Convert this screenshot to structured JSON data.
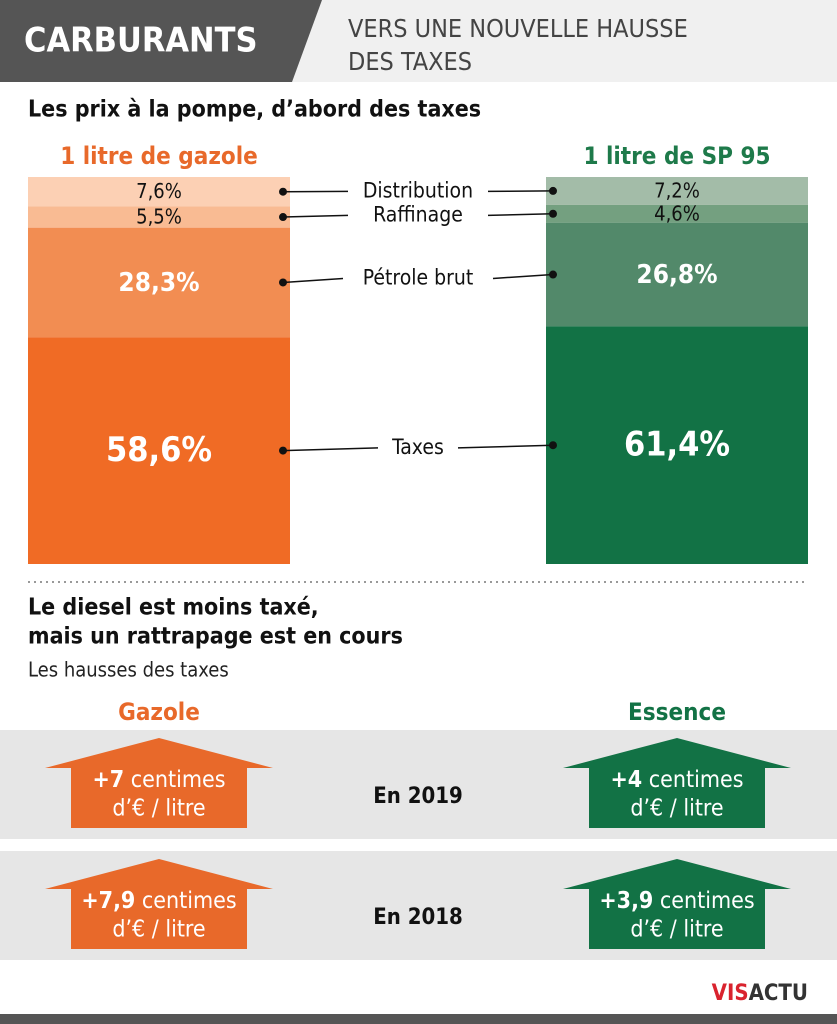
{
  "header": {
    "tag": "CARBURANTS",
    "title_lines": [
      "VERS UNE NOUVELLE HAUSSE",
      "DES TAXES"
    ]
  },
  "chart_data": {
    "type": "stacked_bar",
    "title": "Les prix à la pompe, d’abord des taxes",
    "categories": [
      "1 litre de gazole",
      "1 litre de SP 95"
    ],
    "category_colors": [
      "#e8692a",
      "#1e7a4a"
    ],
    "ylim": [
      0,
      100
    ],
    "series": [
      {
        "name": "Distribution",
        "colors": [
          "#fcd0b4",
          "#a3bca8"
        ],
        "values": [
          7.6,
          7.2
        ],
        "value_labels": [
          "7,6%",
          "7,2%"
        ]
      },
      {
        "name": "Raffinage",
        "colors": [
          "#f9bb93",
          "#74a080"
        ],
        "values": [
          5.5,
          4.6
        ],
        "value_labels": [
          "5,5%",
          "4,6%"
        ]
      },
      {
        "name": "Pétrole brut",
        "colors": [
          "#f28d52",
          "#52896a"
        ],
        "values": [
          28.3,
          26.8
        ],
        "value_labels": [
          "28,3%",
          "26,8%"
        ]
      },
      {
        "name": "Taxes",
        "colors": [
          "#f06b25",
          "#127245"
        ],
        "values": [
          58.6,
          61.4
        ],
        "value_labels": [
          "58,6%",
          "61,4%"
        ]
      }
    ]
  },
  "section2": {
    "title_lines": [
      "Le diesel est moins taxé,",
      "mais un rattrapage est en cours"
    ],
    "subtitle": "Les hausses des taxes",
    "columns": [
      "Gazole",
      "Essence"
    ],
    "rows": [
      {
        "year": "En 2019",
        "cells": [
          {
            "amount": "+7",
            "unit": "centimes",
            "line2": "d’€ / litre"
          },
          {
            "amount": "+4",
            "unit": "centimes",
            "line2": "d’€ / litre"
          }
        ]
      },
      {
        "year": "En 2018",
        "cells": [
          {
            "amount": "+7,9",
            "unit": "centimes",
            "line2": "d’€ / litre"
          },
          {
            "amount": "+3,9",
            "unit": "centimes",
            "line2": "d’€ / litre"
          }
        ]
      }
    ]
  },
  "logo": [
    "VIS",
    "ACTU"
  ]
}
